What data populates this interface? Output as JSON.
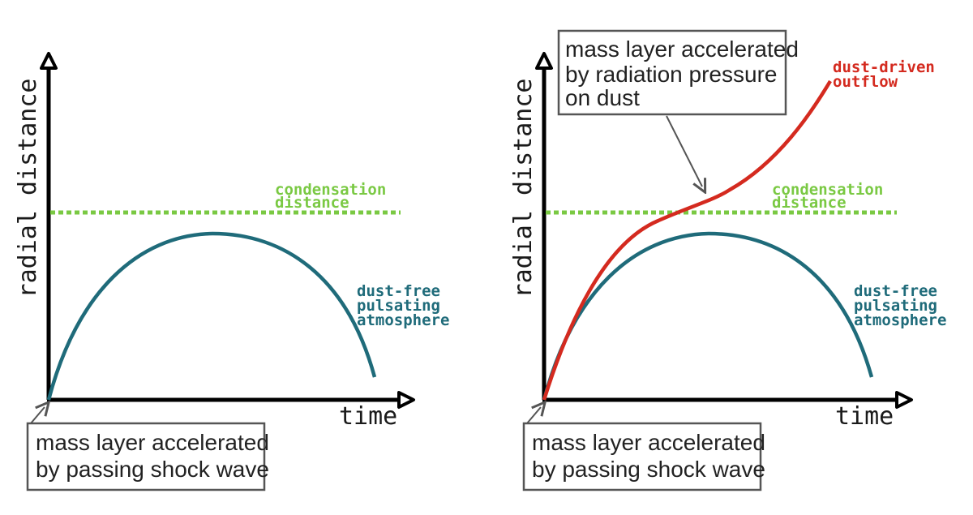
{
  "colors": {
    "axis": "#000000",
    "condensation": "#7ac943",
    "atmosphere": "#1f6b7a",
    "outflow": "#d42a1f",
    "box_border": "#555555"
  },
  "panels": [
    {
      "y_axis_label": "radial distance",
      "x_axis_label": "time",
      "condensation_label": [
        "condensation",
        "distance"
      ],
      "atmosphere_label": [
        "dust-free",
        "pulsating",
        "atmosphere"
      ],
      "shock_note": [
        "mass layer accelerated",
        "by passing shock wave"
      ]
    },
    {
      "y_axis_label": "radial distance",
      "x_axis_label": "time",
      "condensation_label": [
        "condensation",
        "distance"
      ],
      "atmosphere_label": [
        "dust-free",
        "pulsating",
        "atmosphere"
      ],
      "shock_note": [
        "mass layer accelerated",
        "by passing shock wave"
      ],
      "radiation_note": [
        "mass layer accelerated",
        "by radiation pressure",
        "on dust"
      ],
      "outflow_label": [
        "dust-driven",
        "outflow"
      ]
    }
  ]
}
